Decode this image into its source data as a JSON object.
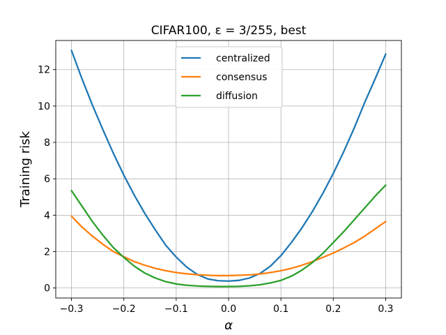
{
  "chart_data": {
    "type": "line",
    "title": "CIFAR100, ε = 3/255, best",
    "xlabel": "α",
    "ylabel": "Training risk",
    "xlim": [
      -0.33,
      0.33
    ],
    "ylim": [
      -0.55,
      13.6
    ],
    "xticks": [
      -0.3,
      -0.2,
      -0.1,
      0.0,
      0.1,
      0.2,
      0.3
    ],
    "xtick_labels": [
      "−0.3",
      "−0.2",
      "−0.1",
      "0.0",
      "0.1",
      "0.2",
      "0.3"
    ],
    "yticks": [
      0,
      2,
      4,
      6,
      8,
      10,
      12
    ],
    "ytick_labels": [
      "0",
      "2",
      "4",
      "6",
      "8",
      "10",
      "12"
    ],
    "grid": true,
    "legend_position": "top-center",
    "x": [
      -0.3,
      -0.28,
      -0.26,
      -0.24,
      -0.22,
      -0.2,
      -0.18,
      -0.16,
      -0.14,
      -0.12,
      -0.1,
      -0.08,
      -0.06,
      -0.04,
      -0.02,
      0.0,
      0.02,
      0.04,
      0.06,
      0.08,
      0.1,
      0.12,
      0.14,
      0.16,
      0.18,
      0.2,
      0.22,
      0.24,
      0.26,
      0.28,
      0.3
    ],
    "series": [
      {
        "name": "centralized",
        "color": "#1f77b4",
        "values": [
          13.05,
          11.5,
          10.05,
          8.7,
          7.4,
          6.2,
          5.1,
          4.1,
          3.2,
          2.35,
          1.7,
          1.15,
          0.75,
          0.5,
          0.4,
          0.38,
          0.42,
          0.55,
          0.8,
          1.2,
          1.78,
          2.5,
          3.3,
          4.2,
          5.2,
          6.3,
          7.5,
          8.8,
          10.2,
          11.5,
          12.85
        ]
      },
      {
        "name": "consensus",
        "color": "#ff7f0e",
        "values": [
          3.95,
          3.35,
          2.85,
          2.4,
          2.0,
          1.72,
          1.45,
          1.25,
          1.08,
          0.95,
          0.85,
          0.78,
          0.73,
          0.7,
          0.68,
          0.68,
          0.7,
          0.72,
          0.77,
          0.85,
          0.95,
          1.08,
          1.25,
          1.45,
          1.68,
          1.92,
          2.2,
          2.5,
          2.85,
          3.25,
          3.65
        ]
      },
      {
        "name": "diffusion",
        "color": "#2ca02c",
        "values": [
          5.35,
          4.5,
          3.65,
          2.9,
          2.22,
          1.68,
          1.2,
          0.82,
          0.55,
          0.35,
          0.22,
          0.15,
          0.11,
          0.09,
          0.08,
          0.08,
          0.09,
          0.12,
          0.18,
          0.28,
          0.42,
          0.65,
          0.98,
          1.4,
          1.9,
          2.5,
          3.1,
          3.75,
          4.4,
          5.05,
          5.65
        ]
      }
    ]
  }
}
